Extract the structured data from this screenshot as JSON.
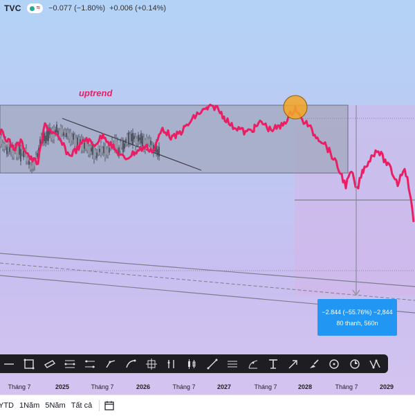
{
  "header": {
    "symbol": "TVC",
    "approx_icon": "≈",
    "change_text": "−0.077 (−1.80%)",
    "change2_text": "+0.006 (+0.14%)"
  },
  "annotations": {
    "uptrend_label": "uptrend",
    "measure_line1": "−2.844 (−55.76%) −2,844",
    "measure_line2": "80 thanh, 560n"
  },
  "time_axis": {
    "labels": [
      "Tháng 7",
      "2025",
      "Tháng 7",
      "2026",
      "Tháng 7",
      "2027",
      "Tháng 7",
      "2028",
      "Tháng 7",
      "2029"
    ]
  },
  "toolbar": {
    "tools": [
      "horizontal-line-icon",
      "rectangle-icon",
      "parallelogram-icon",
      "regression-channel-icon",
      "fib-channel-icon",
      "path-icon",
      "curve-icon",
      "anchored-box-icon",
      "pitchfork-icon",
      "candles-icon",
      "trendline-icon",
      "parallel-lines-icon",
      "fib-fan-icon",
      "text-icon",
      "arrow-marker-icon",
      "brush-icon",
      "circle-icon",
      "cycle-icon",
      "pattern-icon"
    ]
  },
  "bottom_bar": {
    "ranges": [
      "YTD",
      "1Năm",
      "5Năm",
      "Tất cả"
    ],
    "calendar_icon": "calendar-icon"
  },
  "colors": {
    "price_line": "#e91e63",
    "history_candles": "#3a3f4b",
    "measure_box": "#2196f3",
    "highlight_circle": "#f5a623",
    "uptrend_text": "#e91e63"
  }
}
